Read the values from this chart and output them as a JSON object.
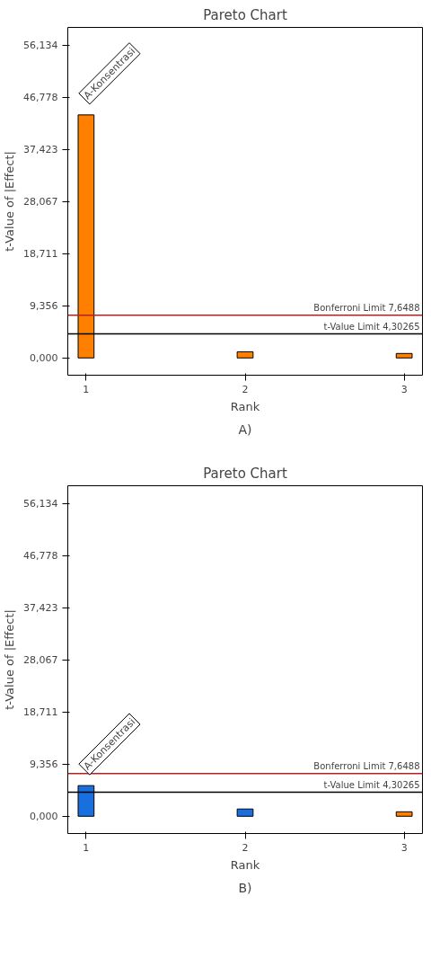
{
  "chart_data": [
    {
      "type": "bar",
      "title": "Pareto Chart",
      "xlabel": "Rank",
      "ylabel": "t-Value of |Effect|",
      "x": [
        1,
        2,
        3
      ],
      "values": [
        43.6,
        1.1,
        0.8
      ],
      "colors": [
        "#ff8000",
        "#ff8000",
        "#ff8000"
      ],
      "xlim": [
        0.885,
        3.115
      ],
      "xticks": [
        1,
        2,
        3
      ],
      "ylim": [
        -3.1,
        59.3
      ],
      "yticks": [
        {
          "value": 0,
          "label": "0,000"
        },
        {
          "value": 9.356,
          "label": "9,356"
        },
        {
          "value": 18.711,
          "label": "18,711"
        },
        {
          "value": 28.067,
          "label": "28,067"
        },
        {
          "value": 37.423,
          "label": "37,423"
        },
        {
          "value": 46.778,
          "label": "46,778"
        },
        {
          "value": 56.134,
          "label": "56,134"
        }
      ],
      "grid": false,
      "ref_lines": [
        {
          "axis": "y",
          "value": 7.6488,
          "label": "Bonferroni Limit 7,6488",
          "color": "#b22222"
        },
        {
          "axis": "y",
          "value": 4.30265,
          "label": "t-Value Limit 4,30265",
          "color": "#000000"
        }
      ],
      "annotations": [
        {
          "text": "A-Konsentrasi",
          "x": 1,
          "y": 43.6
        },
        "A)"
      ]
    },
    {
      "type": "bar",
      "title": "Pareto Chart",
      "xlabel": "Rank",
      "ylabel": "t-Value of |Effect|",
      "x": [
        1,
        2,
        3
      ],
      "values": [
        5.5,
        1.3,
        0.8
      ],
      "colors": [
        "#1a6fdf",
        "#1a6fdf",
        "#ff8000"
      ],
      "xlim": [
        0.885,
        3.115
      ],
      "xticks": [
        1,
        2,
        3
      ],
      "ylim": [
        -3.1,
        59.3
      ],
      "yticks": [
        {
          "value": 0,
          "label": "0,000"
        },
        {
          "value": 9.356,
          "label": "9,356"
        },
        {
          "value": 18.711,
          "label": "18,711"
        },
        {
          "value": 28.067,
          "label": "28,067"
        },
        {
          "value": 37.423,
          "label": "37,423"
        },
        {
          "value": 46.778,
          "label": "46,778"
        },
        {
          "value": 56.134,
          "label": "56,134"
        }
      ],
      "grid": false,
      "ref_lines": [
        {
          "axis": "y",
          "value": 7.6488,
          "label": "Bonferroni Limit 7,6488",
          "color": "#b22222"
        },
        {
          "axis": "y",
          "value": 4.30265,
          "label": "t-Value Limit 4,30265",
          "color": "#000000"
        }
      ],
      "annotations": [
        {
          "text": "A-Konsentrasi",
          "x": 1,
          "y": 5.5
        },
        "B)"
      ]
    }
  ]
}
